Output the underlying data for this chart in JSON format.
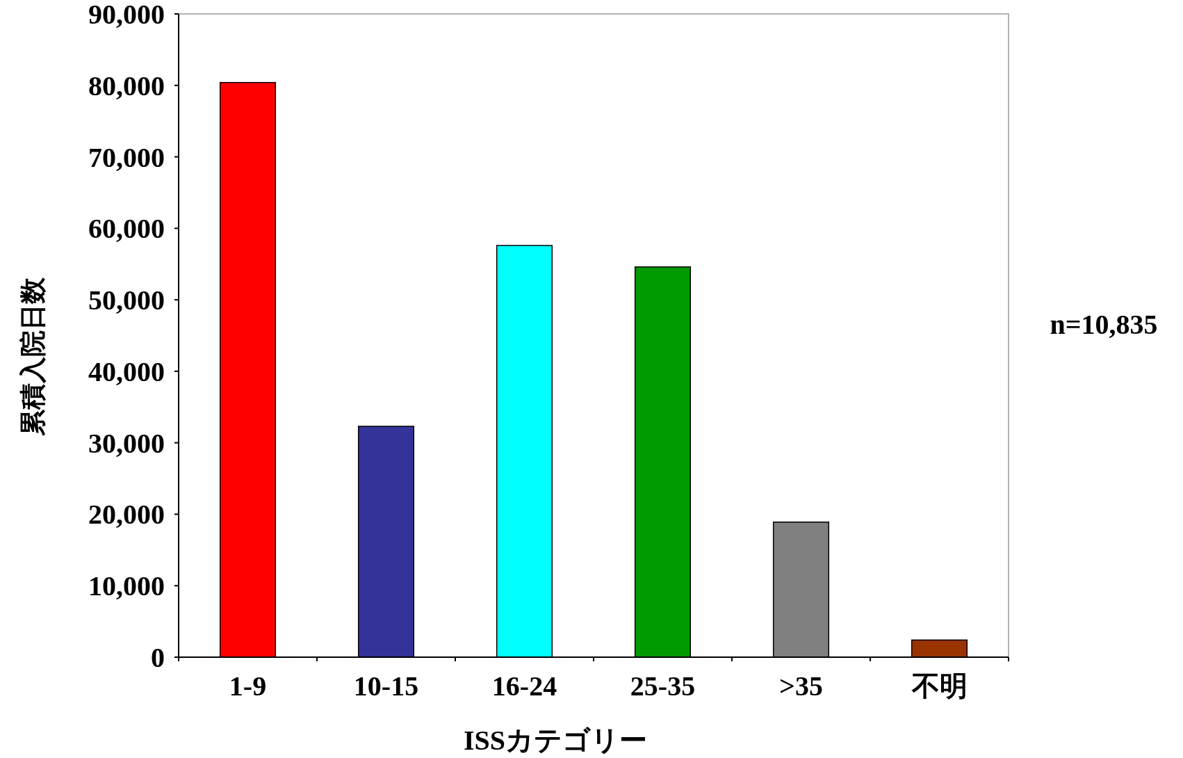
{
  "chart_data": {
    "type": "bar",
    "xlabel": "ISSカテゴリー",
    "ylabel": "累積入院日数",
    "categories": [
      "1-9",
      "10-15",
      "16-24",
      "25-35",
      ">35",
      "不明"
    ],
    "values": [
      80400,
      32300,
      57600,
      54600,
      18900,
      2400
    ],
    "colors": [
      "#ff0000",
      "#333399",
      "#00ffff",
      "#009900",
      "#808080",
      "#993300"
    ],
    "ylim": [
      0,
      90000
    ],
    "yticks": [
      {
        "value": 0,
        "label": "0"
      },
      {
        "value": 10000,
        "label": "10,000"
      },
      {
        "value": 20000,
        "label": "20,000"
      },
      {
        "value": 30000,
        "label": "30,000"
      },
      {
        "value": 40000,
        "label": "40,000"
      },
      {
        "value": 50000,
        "label": "50,000"
      },
      {
        "value": 60000,
        "label": "60,000"
      },
      {
        "value": 70000,
        "label": "70,000"
      },
      {
        "value": 80000,
        "label": "80,000"
      },
      {
        "value": 90000,
        "label": "90,000"
      }
    ],
    "annotations": [
      "n=10,835"
    ],
    "grid": false
  }
}
